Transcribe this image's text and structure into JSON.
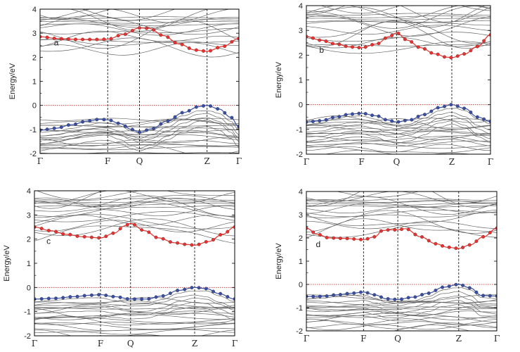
{
  "chart_data": [
    {
      "id": "a",
      "type": "line",
      "panel_label": "a",
      "ylabel": "Energy/eV",
      "ylim": [
        -2,
        4
      ],
      "yticks": [
        "-2",
        "-1",
        "0",
        "1",
        "2",
        "3",
        "4"
      ],
      "kpoints": [
        "Γ",
        "F",
        "Q",
        "Z",
        "Γ"
      ],
      "kpos": [
        0,
        0.34,
        0.5,
        0.84,
        1
      ],
      "fermi_level": 0,
      "conduction_band": {
        "x": [
          0,
          0.1,
          0.2,
          0.28,
          0.34,
          0.42,
          0.5,
          0.55,
          0.62,
          0.7,
          0.78,
          0.84,
          0.92,
          1
        ],
        "y": [
          2.85,
          2.77,
          2.74,
          2.74,
          2.75,
          2.95,
          3.22,
          3.2,
          2.9,
          2.55,
          2.3,
          2.25,
          2.45,
          2.78
        ]
      },
      "valence_band": {
        "x": [
          0,
          0.08,
          0.16,
          0.24,
          0.3,
          0.34,
          0.4,
          0.46,
          0.5,
          0.56,
          0.64,
          0.72,
          0.8,
          0.84,
          0.9,
          0.96,
          1
        ],
        "y": [
          -1.03,
          -0.95,
          -0.8,
          -0.65,
          -0.58,
          -0.6,
          -0.75,
          -1.0,
          -1.12,
          -0.98,
          -0.65,
          -0.3,
          -0.05,
          0,
          -0.15,
          -0.5,
          -0.9
        ]
      }
    },
    {
      "id": "b",
      "type": "line",
      "panel_label": "b",
      "ylabel": "Energy/eV",
      "ylim": [
        -2,
        4
      ],
      "yticks": [
        "-2",
        "-1",
        "0",
        "1",
        "2",
        "3",
        "4"
      ],
      "kpoints": [
        "Γ",
        "F",
        "Q",
        "Z",
        "Γ"
      ],
      "kpos": [
        0,
        0.3,
        0.49,
        0.79,
        1
      ],
      "fermi_level": 0,
      "conduction_band": {
        "x": [
          0,
          0.08,
          0.16,
          0.24,
          0.3,
          0.38,
          0.45,
          0.49,
          0.55,
          0.62,
          0.7,
          0.76,
          0.79,
          0.86,
          0.93,
          1
        ],
        "y": [
          2.75,
          2.6,
          2.45,
          2.33,
          2.3,
          2.45,
          2.75,
          2.9,
          2.6,
          2.3,
          2.05,
          1.92,
          1.9,
          2.05,
          2.35,
          2.82
        ]
      },
      "valence_band": {
        "x": [
          0,
          0.08,
          0.16,
          0.24,
          0.3,
          0.38,
          0.44,
          0.49,
          0.56,
          0.64,
          0.72,
          0.79,
          0.86,
          0.93,
          1
        ],
        "y": [
          -0.7,
          -0.65,
          -0.5,
          -0.38,
          -0.35,
          -0.45,
          -0.62,
          -0.7,
          -0.62,
          -0.4,
          -0.12,
          0,
          -0.15,
          -0.5,
          -0.68
        ]
      }
    },
    {
      "id": "c",
      "type": "line",
      "panel_label": "c",
      "ylabel": "Energy/eV",
      "ylim": [
        -2,
        4
      ],
      "yticks": [
        "-2",
        "-1",
        "0",
        "1",
        "2",
        "3",
        "4"
      ],
      "kpoints": [
        "Γ",
        "F",
        "Q",
        "Z",
        "Γ"
      ],
      "kpos": [
        0,
        0.33,
        0.48,
        0.8,
        1
      ],
      "fermi_level": 0,
      "conduction_band": {
        "x": [
          0,
          0.08,
          0.16,
          0.24,
          0.33,
          0.4,
          0.45,
          0.48,
          0.55,
          0.62,
          0.7,
          0.76,
          0.8,
          0.87,
          0.94,
          1
        ],
        "y": [
          2.5,
          2.35,
          2.2,
          2.1,
          2.05,
          2.25,
          2.55,
          2.65,
          2.35,
          2.05,
          1.85,
          1.78,
          1.75,
          1.9,
          2.2,
          2.5
        ]
      },
      "valence_band": {
        "x": [
          0,
          0.1,
          0.2,
          0.28,
          0.33,
          0.4,
          0.48,
          0.56,
          0.64,
          0.72,
          0.8,
          0.86,
          0.92,
          1
        ],
        "y": [
          -0.48,
          -0.45,
          -0.38,
          -0.32,
          -0.3,
          -0.38,
          -0.48,
          -0.48,
          -0.35,
          -0.12,
          0,
          -0.05,
          -0.25,
          -0.48
        ]
      }
    },
    {
      "id": "d",
      "type": "line",
      "panel_label": "d",
      "ylabel": "Energy/eV",
      "ylim": [
        -2,
        4
      ],
      "yticks": [
        "-2",
        "-1",
        "0",
        "1",
        "2",
        "3",
        "4"
      ],
      "kpoints": [
        "Γ",
        "F",
        "Q",
        "Z",
        "Γ"
      ],
      "kpos": [
        0,
        0.3,
        0.48,
        0.8,
        1
      ],
      "fermi_level": 0,
      "conduction_band": {
        "x": [
          0,
          0.06,
          0.12,
          0.2,
          0.3,
          0.36,
          0.4,
          0.44,
          0.48,
          0.52,
          0.6,
          0.68,
          0.74,
          0.8,
          0.86,
          0.93,
          1
        ],
        "y": [
          2.42,
          2.15,
          2.0,
          1.98,
          1.93,
          2.05,
          2.32,
          2.35,
          2.35,
          2.4,
          2.05,
          1.75,
          1.6,
          1.55,
          1.7,
          2.05,
          2.42
        ]
      },
      "valence_band": {
        "x": [
          0,
          0.08,
          0.16,
          0.24,
          0.3,
          0.36,
          0.42,
          0.48,
          0.56,
          0.64,
          0.72,
          0.8,
          0.86,
          0.92,
          1
        ],
        "y": [
          -0.52,
          -0.52,
          -0.45,
          -0.38,
          -0.33,
          -0.45,
          -0.62,
          -0.65,
          -0.55,
          -0.38,
          -0.12,
          0,
          -0.15,
          -0.48,
          -0.5
        ]
      }
    }
  ],
  "style": {
    "conduction_color": "#e8322f",
    "valence_color": "#3a4fa3",
    "background_band_color": "#666666",
    "fermi_line_color": "#cc2222",
    "frame_color": "#000000"
  }
}
